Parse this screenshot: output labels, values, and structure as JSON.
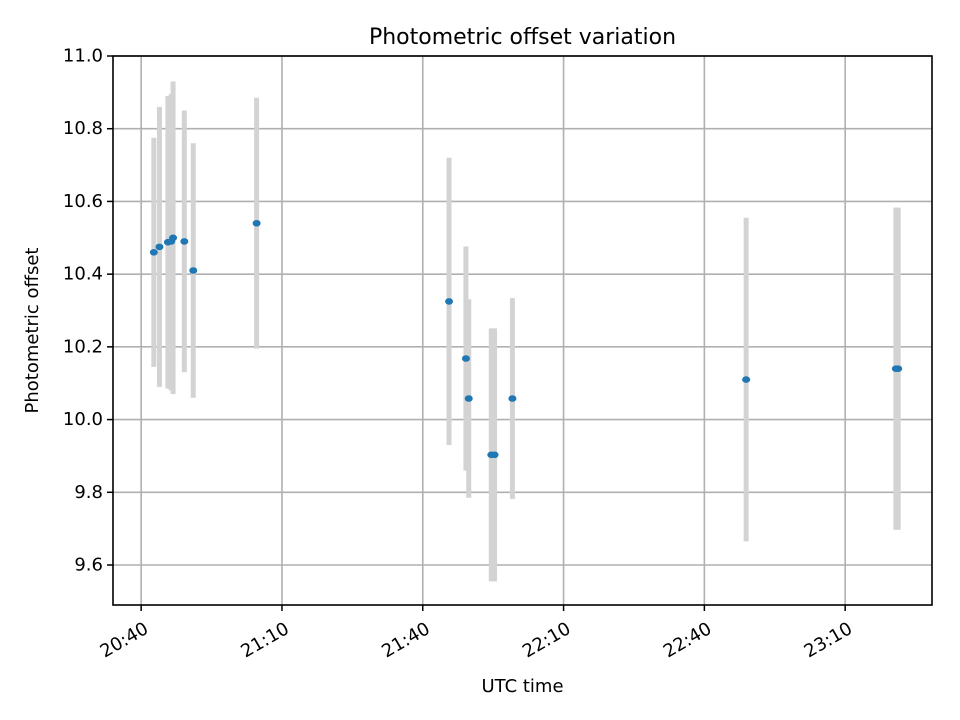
{
  "chart_data": {
    "type": "scatter",
    "title": "Photometric offset variation",
    "xlabel": "UTC time",
    "ylabel": "Photometric offset",
    "xlim_minutes": [
      1234,
      1408.5
    ],
    "ylim": [
      9.49,
      11.0
    ],
    "grid": true,
    "x_ticks": [
      {
        "label": "20:40",
        "value": 1240
      },
      {
        "label": "21:10",
        "value": 1270
      },
      {
        "label": "21:40",
        "value": 1300
      },
      {
        "label": "22:10",
        "value": 1330
      },
      {
        "label": "22:40",
        "value": 1360
      },
      {
        "label": "23:10",
        "value": 1390
      }
    ],
    "y_ticks": [
      {
        "label": "9.6",
        "value": 9.6
      },
      {
        "label": "9.8",
        "value": 9.8
      },
      {
        "label": "10.0",
        "value": 10.0
      },
      {
        "label": "10.2",
        "value": 10.2
      },
      {
        "label": "10.4",
        "value": 10.4
      },
      {
        "label": "10.6",
        "value": 10.6
      },
      {
        "label": "10.8",
        "value": 10.8
      },
      {
        "label": "11.0",
        "value": 11.0
      }
    ],
    "points": [
      {
        "time": "20:42:42",
        "x": 1242.7,
        "y": 10.46,
        "err_low": 10.145,
        "err_high": 10.775
      },
      {
        "time": "20:43:54",
        "x": 1243.9,
        "y": 10.475,
        "err_low": 10.09,
        "err_high": 10.86
      },
      {
        "time": "20:45:42",
        "x": 1245.7,
        "y": 10.488,
        "err_low": 10.085,
        "err_high": 10.89
      },
      {
        "time": "20:46:24",
        "x": 1246.4,
        "y": 10.49,
        "err_low": 10.08,
        "err_high": 10.895
      },
      {
        "time": "20:46:48",
        "x": 1246.8,
        "y": 10.5,
        "err_low": 10.07,
        "err_high": 10.93
      },
      {
        "time": "20:49:12",
        "x": 1249.2,
        "y": 10.49,
        "err_low": 10.13,
        "err_high": 10.85
      },
      {
        "time": "20:51:06",
        "x": 1251.1,
        "y": 10.41,
        "err_low": 10.06,
        "err_high": 10.76
      },
      {
        "time": "21:04:36",
        "x": 1264.6,
        "y": 10.54,
        "err_low": 10.195,
        "err_high": 10.885
      },
      {
        "time": "21:45:36",
        "x": 1305.6,
        "y": 10.325,
        "err_low": 9.93,
        "err_high": 10.72
      },
      {
        "time": "21:49:12",
        "x": 1309.2,
        "y": 10.168,
        "err_low": 9.86,
        "err_high": 10.476
      },
      {
        "time": "21:49:48",
        "x": 1309.8,
        "y": 10.058,
        "err_low": 9.785,
        "err_high": 10.331
      },
      {
        "time": "21:54:36",
        "x": 1314.6,
        "y": 9.903,
        "err_low": 9.555,
        "err_high": 10.251
      },
      {
        "time": "21:55:18",
        "x": 1315.3,
        "y": 9.903,
        "err_low": 9.555,
        "err_high": 10.251
      },
      {
        "time": "21:59:06",
        "x": 1319.1,
        "y": 10.058,
        "err_low": 9.782,
        "err_high": 10.334
      },
      {
        "time": "22:48:54",
        "x": 1368.9,
        "y": 10.11,
        "err_low": 9.665,
        "err_high": 10.555
      },
      {
        "time": "23:20:48",
        "x": 1400.8,
        "y": 10.14,
        "err_low": 9.697,
        "err_high": 10.583
      },
      {
        "time": "23:21:18",
        "x": 1401.3,
        "y": 10.14,
        "err_low": 9.697,
        "err_high": 10.583
      }
    ]
  },
  "colors": {
    "marker": "#1f77b4",
    "error_bar": "#d3d3d3",
    "grid": "#b0b0b0",
    "axes": "#000000"
  }
}
